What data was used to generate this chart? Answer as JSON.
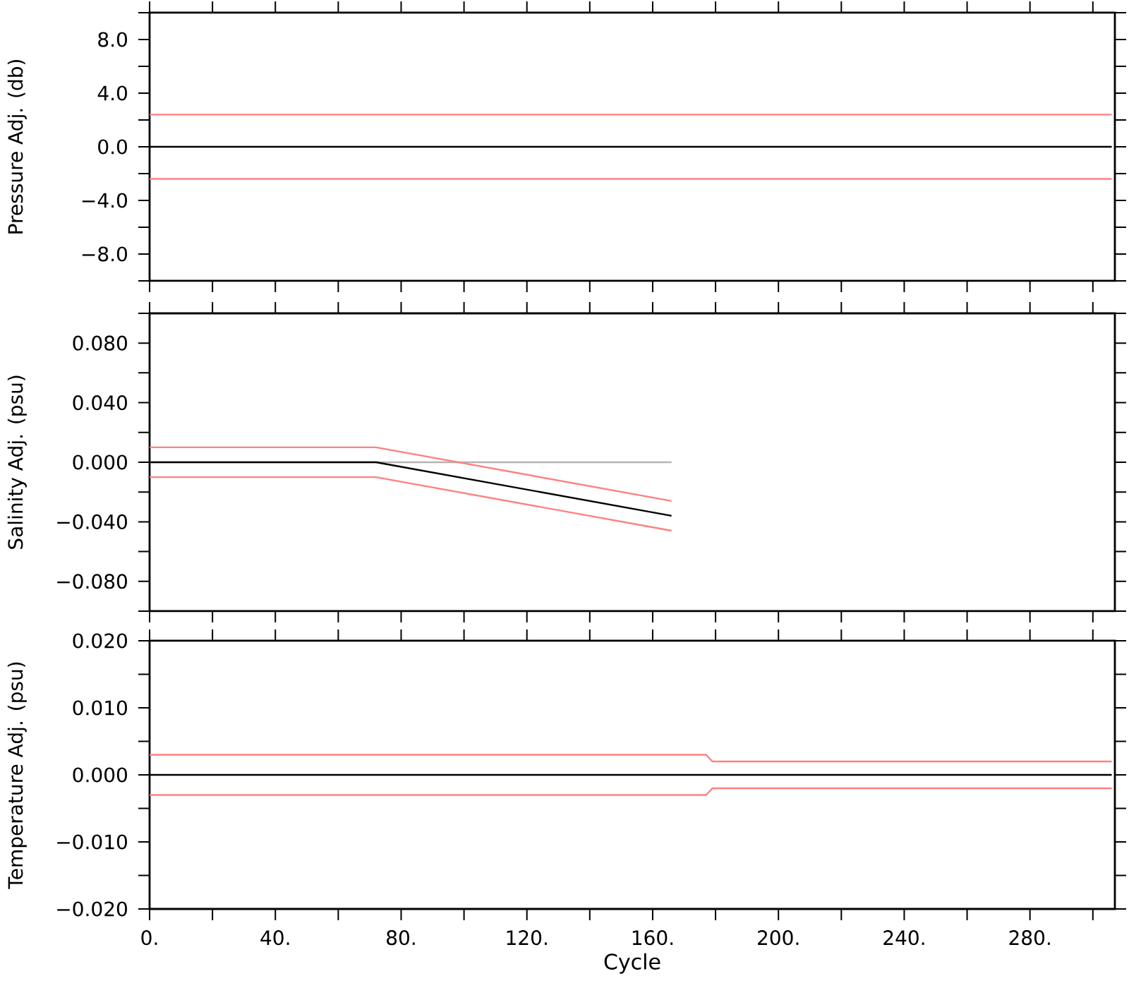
{
  "chart_data": [
    {
      "type": "line",
      "ylabel": "Pressure Adj. (db)",
      "xlim": [
        0,
        307
      ],
      "ylim": [
        -10,
        10
      ],
      "tick_labels": "y",
      "xticks": [
        {
          "value": 0,
          "label": null
        },
        {
          "value": 20,
          "label": null
        },
        {
          "value": 40,
          "label": null
        },
        {
          "value": 60,
          "label": null
        },
        {
          "value": 80,
          "label": null
        },
        {
          "value": 100,
          "label": null
        },
        {
          "value": 120,
          "label": null
        },
        {
          "value": 140,
          "label": null
        },
        {
          "value": 160,
          "label": null
        },
        {
          "value": 180,
          "label": null
        },
        {
          "value": 200,
          "label": null
        },
        {
          "value": 220,
          "label": null
        },
        {
          "value": 240,
          "label": null
        },
        {
          "value": 260,
          "label": null
        },
        {
          "value": 280,
          "label": null
        },
        {
          "value": 300,
          "label": null
        }
      ],
      "yticks": [
        {
          "value": -10,
          "label": null
        },
        {
          "value": -8,
          "label": "−8.0"
        },
        {
          "value": -6,
          "label": null
        },
        {
          "value": -4,
          "label": "−4.0"
        },
        {
          "value": -2,
          "label": null
        },
        {
          "value": 0,
          "label": "0.0"
        },
        {
          "value": 2,
          "label": null
        },
        {
          "value": 4,
          "label": "4.0"
        },
        {
          "value": 6,
          "label": null
        },
        {
          "value": 8,
          "label": "8.0"
        },
        {
          "value": 10,
          "label": null
        }
      ],
      "series": [
        {
          "color": "#ff8080",
          "x": [
            0,
            306
          ],
          "values": [
            2.4,
            2.4
          ]
        },
        {
          "color": "#ff8080",
          "x": [
            0,
            306
          ],
          "values": [
            -2.4,
            -2.4
          ]
        },
        {
          "color": "#000000",
          "x": [
            0,
            306
          ],
          "values": [
            0,
            0
          ]
        }
      ]
    },
    {
      "type": "line",
      "ylabel": "Salinity Adj. (psu)",
      "xlim": [
        0,
        307
      ],
      "ylim": [
        -0.1,
        0.1
      ],
      "tick_labels": "y",
      "xticks": [
        {
          "value": 0,
          "label": null
        },
        {
          "value": 20,
          "label": null
        },
        {
          "value": 40,
          "label": null
        },
        {
          "value": 60,
          "label": null
        },
        {
          "value": 80,
          "label": null
        },
        {
          "value": 100,
          "label": null
        },
        {
          "value": 120,
          "label": null
        },
        {
          "value": 140,
          "label": null
        },
        {
          "value": 160,
          "label": null
        },
        {
          "value": 180,
          "label": null
        },
        {
          "value": 200,
          "label": null
        },
        {
          "value": 220,
          "label": null
        },
        {
          "value": 240,
          "label": null
        },
        {
          "value": 260,
          "label": null
        },
        {
          "value": 280,
          "label": null
        },
        {
          "value": 300,
          "label": null
        }
      ],
      "yticks": [
        {
          "value": -0.1,
          "label": null
        },
        {
          "value": -0.08,
          "label": "−0.080"
        },
        {
          "value": -0.06,
          "label": null
        },
        {
          "value": -0.04,
          "label": "−0.040"
        },
        {
          "value": -0.02,
          "label": null
        },
        {
          "value": 0,
          "label": "0.000"
        },
        {
          "value": 0.02,
          "label": null
        },
        {
          "value": 0.04,
          "label": "0.040"
        },
        {
          "value": 0.06,
          "label": null
        },
        {
          "value": 0.08,
          "label": "0.080"
        },
        {
          "value": 0.1,
          "label": null
        }
      ],
      "series": [
        {
          "color": "#b4b4b4",
          "x": [
            0,
            166
          ],
          "values": [
            0,
            0
          ]
        },
        {
          "color": "#ff8080",
          "x": [
            0,
            72,
            166
          ],
          "values": [
            0.01,
            0.01,
            -0.026
          ]
        },
        {
          "color": "#ff8080",
          "x": [
            0,
            72,
            166
          ],
          "values": [
            -0.01,
            -0.01,
            -0.046
          ]
        },
        {
          "color": "#000000",
          "x": [
            0,
            72,
            166
          ],
          "values": [
            0,
            0,
            -0.036
          ]
        }
      ]
    },
    {
      "type": "line",
      "ylabel": "Temperature Adj. (psu)",
      "xlabel": "Cycle",
      "xlim": [
        0,
        307
      ],
      "ylim": [
        -0.02,
        0.02
      ],
      "xticks": [
        {
          "value": 0,
          "label": "0."
        },
        {
          "value": 20,
          "label": null
        },
        {
          "value": 40,
          "label": "40."
        },
        {
          "value": 60,
          "label": null
        },
        {
          "value": 80,
          "label": "80."
        },
        {
          "value": 100,
          "label": null
        },
        {
          "value": 120,
          "label": "120."
        },
        {
          "value": 140,
          "label": null
        },
        {
          "value": 160,
          "label": "160."
        },
        {
          "value": 180,
          "label": null
        },
        {
          "value": 200,
          "label": "200."
        },
        {
          "value": 220,
          "label": null
        },
        {
          "value": 240,
          "label": "240."
        },
        {
          "value": 260,
          "label": null
        },
        {
          "value": 280,
          "label": "280."
        },
        {
          "value": 300,
          "label": null
        }
      ],
      "yticks": [
        {
          "value": -0.02,
          "label": "−0.020"
        },
        {
          "value": -0.015,
          "label": null
        },
        {
          "value": -0.01,
          "label": "−0.010"
        },
        {
          "value": -0.005,
          "label": null
        },
        {
          "value": 0,
          "label": "0.000"
        },
        {
          "value": 0.005,
          "label": null
        },
        {
          "value": 0.01,
          "label": "0.010"
        },
        {
          "value": 0.015,
          "label": null
        },
        {
          "value": 0.02,
          "label": "0.020"
        }
      ],
      "series": [
        {
          "color": "#ff8080",
          "x": [
            0,
            177,
            179,
            306
          ],
          "values": [
            0.003,
            0.003,
            0.002,
            0.002
          ]
        },
        {
          "color": "#ff8080",
          "x": [
            0,
            177,
            179,
            306
          ],
          "values": [
            -0.003,
            -0.003,
            -0.002,
            -0.002
          ]
        },
        {
          "color": "#000000",
          "x": [
            0,
            306
          ],
          "values": [
            0,
            0
          ]
        }
      ]
    }
  ]
}
